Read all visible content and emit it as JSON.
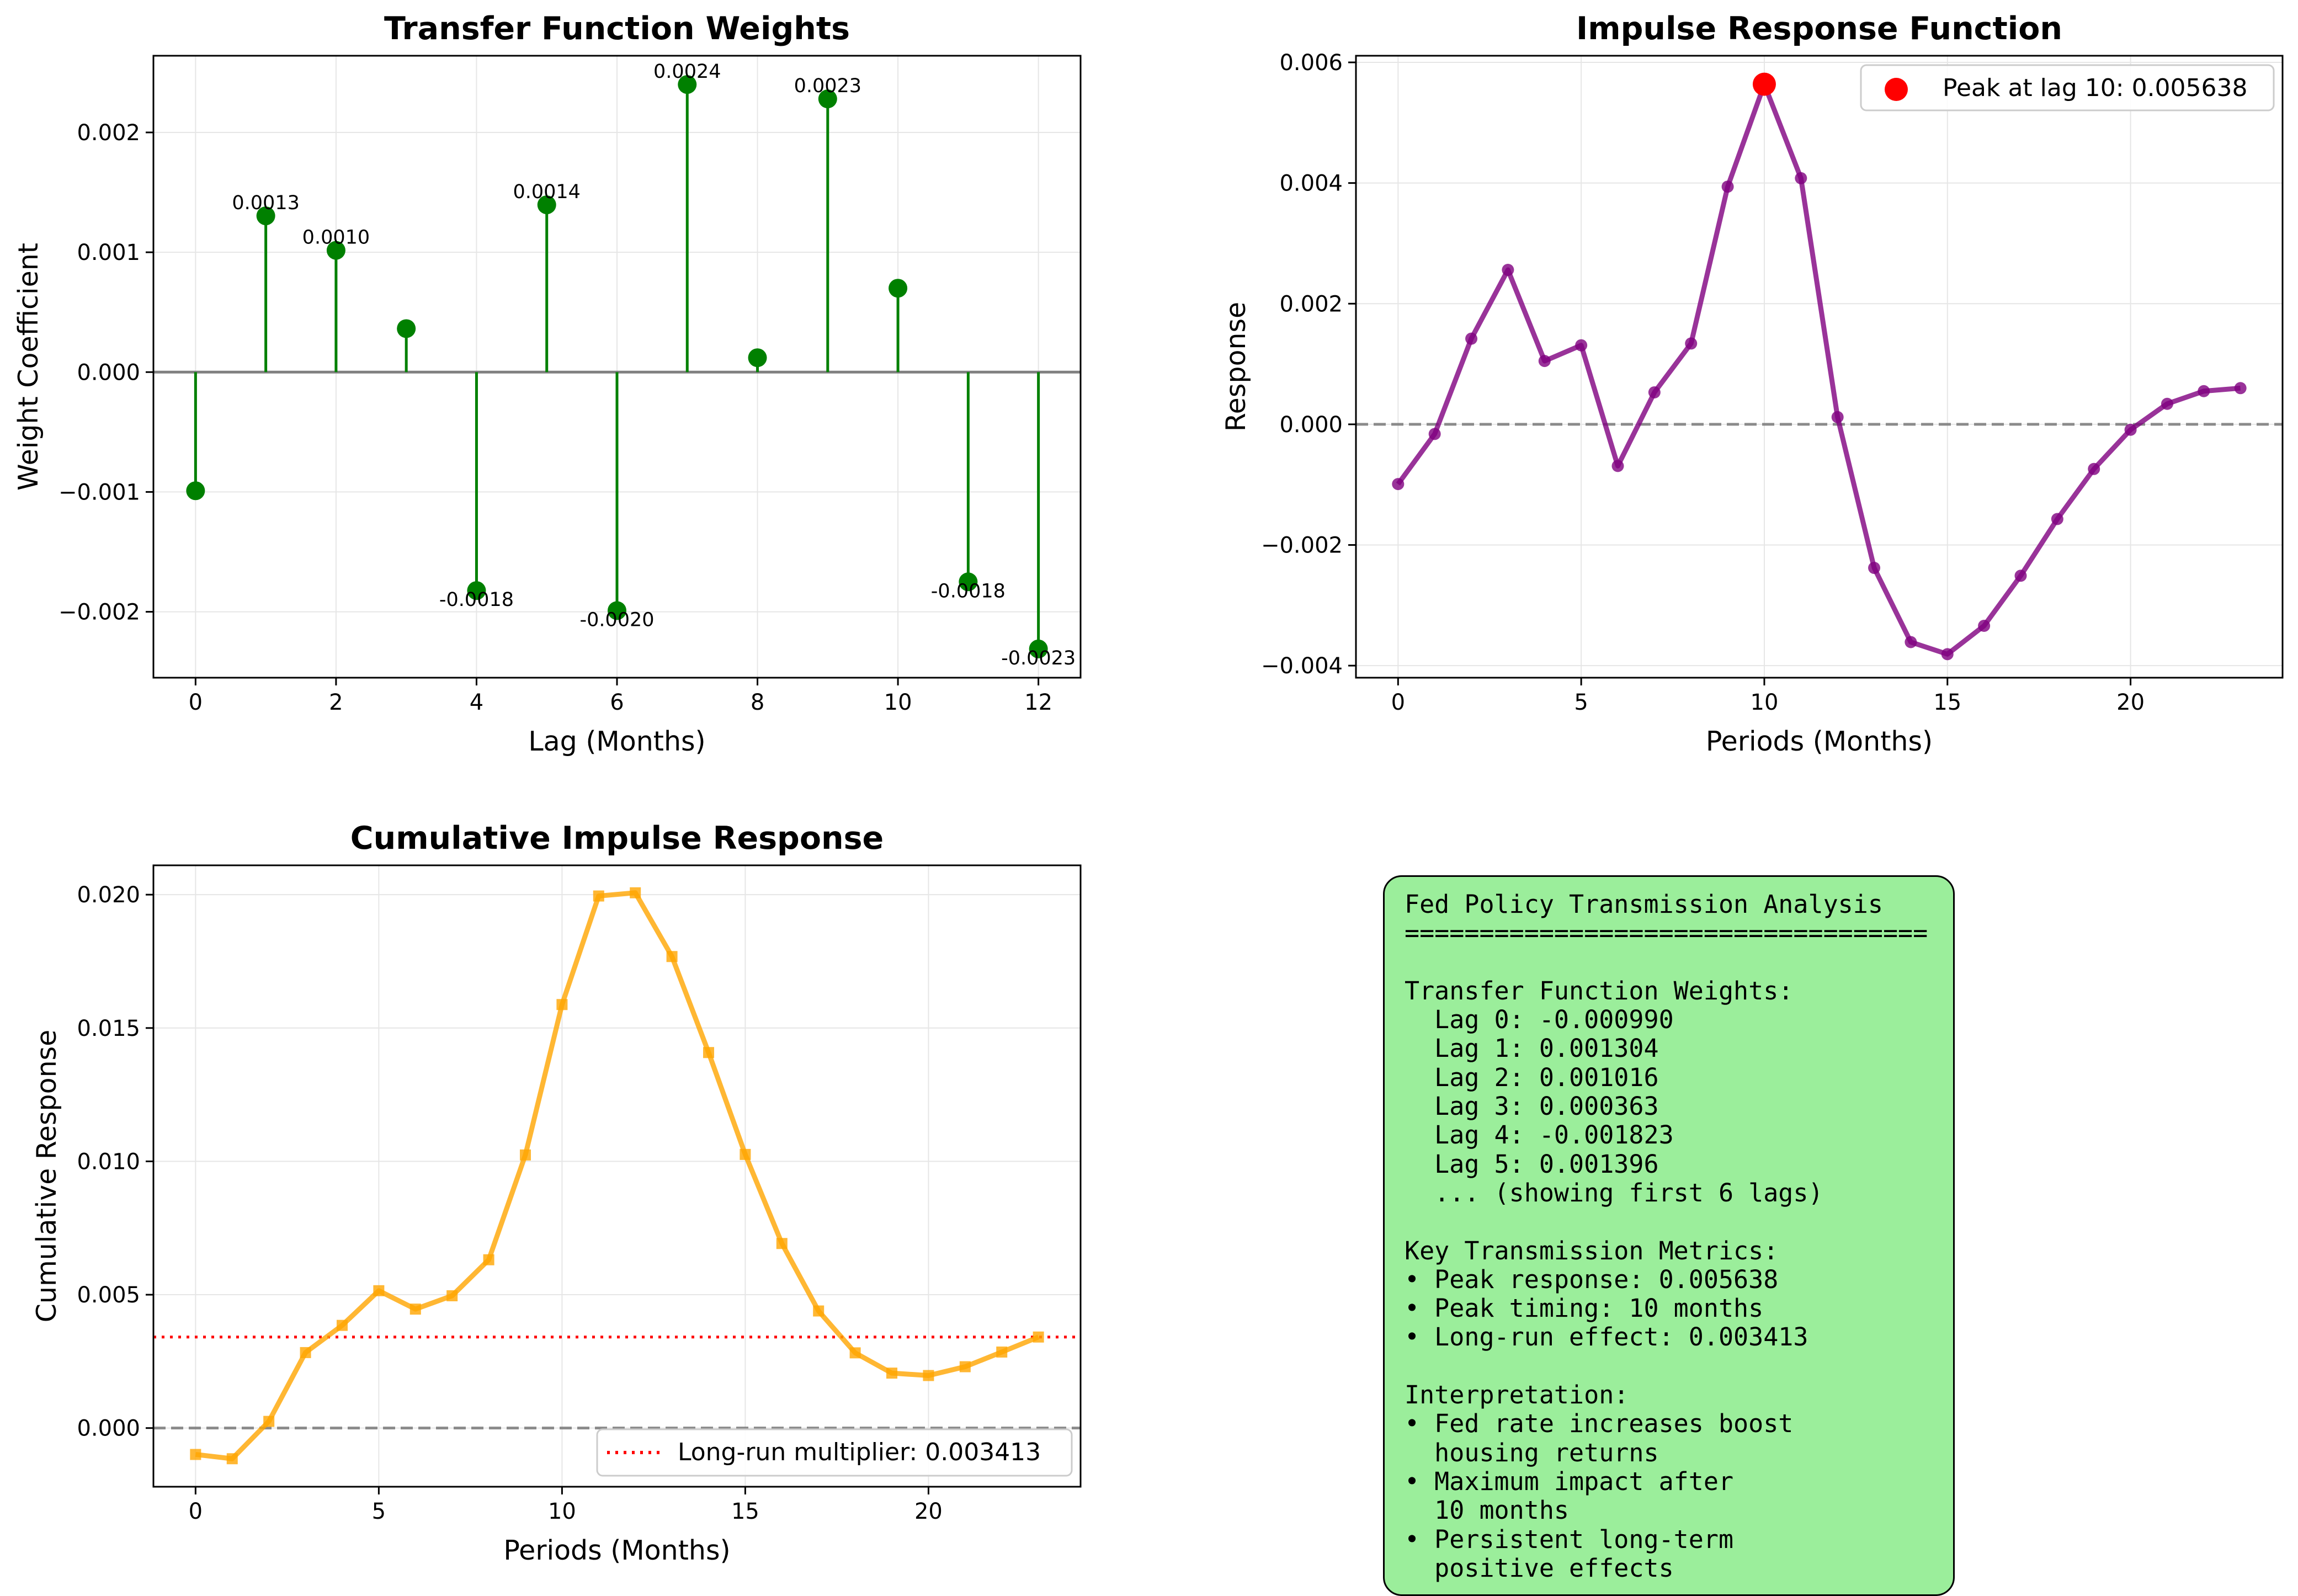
{
  "chart_data": [
    {
      "type": "stem",
      "title": "Transfer Function Weights",
      "xlabel": "Lag (Months)",
      "ylabel": "Weight Coefficient",
      "xlim": [
        -0.6,
        12.6
      ],
      "ylim": [
        -0.00255,
        0.00264
      ],
      "xticks": [
        0,
        2,
        4,
        6,
        8,
        10,
        12
      ],
      "xtick_labels": [
        "0",
        "2",
        "4",
        "6",
        "8",
        "10",
        "12"
      ],
      "yticks": [
        -0.002,
        -0.001,
        0.0,
        0.001,
        0.002
      ],
      "ytick_labels": [
        "−0.002",
        "−0.001",
        "0.000",
        "0.001",
        "0.002"
      ],
      "grid": true,
      "color": "#008000",
      "x": [
        0,
        1,
        2,
        3,
        4,
        5,
        6,
        7,
        8,
        9,
        10,
        11,
        12
      ],
      "values": [
        -0.00099,
        0.001304,
        0.001016,
        0.000363,
        -0.001823,
        0.001396,
        -0.00199,
        0.0024,
        0.00012,
        0.00228,
        0.0007,
        -0.00175,
        -0.00231
      ],
      "data_labels": [
        {
          "index": 1,
          "text": "0.0013"
        },
        {
          "index": 2,
          "text": "0.0010"
        },
        {
          "index": 4,
          "text": "-0.0018"
        },
        {
          "index": 5,
          "text": "0.0014"
        },
        {
          "index": 6,
          "text": "-0.0020"
        },
        {
          "index": 7,
          "text": "0.0024"
        },
        {
          "index": 9,
          "text": "0.0023"
        },
        {
          "index": 11,
          "text": "-0.0018"
        },
        {
          "index": 12,
          "text": "-0.0023"
        }
      ]
    },
    {
      "type": "line",
      "title": "Impulse Response Function",
      "xlabel": "Periods (Months)",
      "ylabel": "Response",
      "xlim": [
        -1.15,
        24.15
      ],
      "ylim": [
        -0.0042,
        0.00611
      ],
      "xticks": [
        0,
        5,
        10,
        15,
        20
      ],
      "xtick_labels": [
        "0",
        "5",
        "10",
        "15",
        "20"
      ],
      "yticks": [
        -0.004,
        -0.002,
        0.0,
        0.002,
        0.004,
        0.006
      ],
      "ytick_labels": [
        "−0.004",
        "−0.002",
        "0.000",
        "0.002",
        "0.004",
        "0.006"
      ],
      "grid": true,
      "color": "#800080",
      "x": [
        0,
        1,
        2,
        3,
        4,
        5,
        6,
        7,
        8,
        9,
        10,
        11,
        12,
        13,
        14,
        15,
        16,
        17,
        18,
        19,
        20,
        21,
        22,
        23
      ],
      "values": [
        -0.00099,
        -0.00016,
        0.00142,
        0.00256,
        0.00105,
        0.00131,
        -0.00069,
        0.00053,
        0.00134,
        0.00394,
        0.005638,
        0.00408,
        0.00012,
        -0.00238,
        -0.00361,
        -0.00381,
        -0.00334,
        -0.00251,
        -0.00157,
        -0.00074,
        -9e-05,
        0.00034,
        0.00055,
        0.0006
      ],
      "reference_line": {
        "y": 0.0,
        "style": "dashed",
        "color": "#808080"
      },
      "peak": {
        "x": 10,
        "y": 0.005638,
        "color": "#ff0000"
      },
      "legend": {
        "position": "upper right",
        "entries": [
          "Peak at lag 10: 0.005638"
        ]
      }
    },
    {
      "type": "line",
      "title": "Cumulative Impulse Response",
      "xlabel": "Periods (Months)",
      "ylabel": "Cumulative Response",
      "xlim": [
        -1.15,
        24.15
      ],
      "ylim": [
        -0.0022,
        0.0211
      ],
      "xticks": [
        0,
        5,
        10,
        15,
        20
      ],
      "xtick_labels": [
        "0",
        "5",
        "10",
        "15",
        "20"
      ],
      "yticks": [
        0.0,
        0.005,
        0.01,
        0.015,
        0.02
      ],
      "ytick_labels": [
        "0.000",
        "0.005",
        "0.010",
        "0.015",
        "0.020"
      ],
      "grid": true,
      "color": "#ffa500",
      "x": [
        0,
        1,
        2,
        3,
        4,
        5,
        6,
        7,
        8,
        9,
        10,
        11,
        12,
        13,
        14,
        15,
        16,
        17,
        18,
        19,
        20,
        21,
        22,
        23
      ],
      "values": [
        -0.00099,
        -0.00115,
        0.00025,
        0.00283,
        0.00385,
        0.00515,
        0.00446,
        0.00496,
        0.00631,
        0.01024,
        0.01588,
        0.01995,
        0.02007,
        0.01768,
        0.01408,
        0.01026,
        0.00692,
        0.00439,
        0.00282,
        0.00206,
        0.00197,
        0.0023,
        0.00285,
        0.003413
      ],
      "reference_lines": [
        {
          "y": 0.0,
          "style": "dashed",
          "color": "#808080"
        },
        {
          "y": 0.003413,
          "style": "dotted",
          "color": "#ff0000"
        }
      ],
      "legend": {
        "position": "lower right",
        "entries": [
          "Long-run multiplier: 0.003413"
        ]
      }
    }
  ],
  "summary": {
    "lines": [
      "Fed Policy Transmission Analysis",
      "===================================",
      "",
      "Transfer Function Weights:",
      "  Lag 0: -0.000990",
      "  Lag 1: 0.001304",
      "  Lag 2: 0.001016",
      "  Lag 3: 0.000363",
      "  Lag 4: -0.001823",
      "  Lag 5: 0.001396",
      "  ... (showing first 6 lags)",
      "",
      "Key Transmission Metrics:",
      "• Peak response: 0.005638",
      "• Peak timing: 10 months",
      "• Long-run effect: 0.003413",
      "",
      "Interpretation:",
      "• Fed rate increases boost",
      "  housing returns",
      "• Maximum impact after",
      "  10 months",
      "• Persistent long-term",
      "  positive effects"
    ]
  }
}
